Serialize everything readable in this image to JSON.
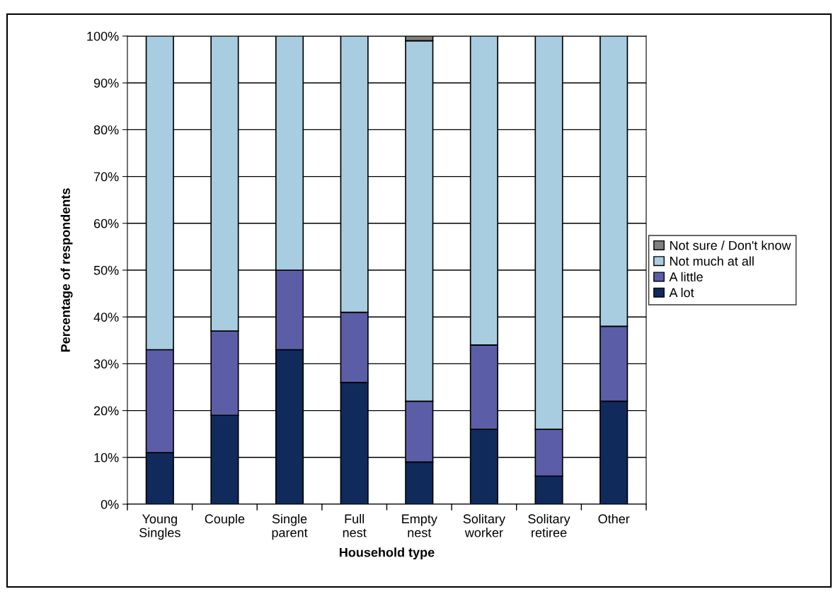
{
  "chart_data": {
    "type": "bar",
    "stacked": true,
    "xlabel": "Household type",
    "ylabel": "Percentage of respondents",
    "categories": [
      "Young\nSingles",
      "Couple",
      "Single\nparent",
      "Full\nnest",
      "Empty\nnest",
      "Solitary\nworker",
      "Solitary\nretiree",
      "Other"
    ],
    "series": [
      {
        "name": "A lot",
        "color": "#112a5c",
        "values": [
          11,
          19,
          33,
          26,
          9,
          16,
          6,
          22
        ]
      },
      {
        "name": "A little",
        "color": "#5b5ea6",
        "values": [
          22,
          18,
          17,
          15,
          13,
          18,
          10,
          16
        ]
      },
      {
        "name": "Not much at all",
        "color": "#a8cde0",
        "values": [
          67,
          63,
          50,
          59,
          77,
          66,
          84,
          62
        ]
      },
      {
        "name": "Not sure / Don't know",
        "color": "#808080",
        "values": [
          0,
          0,
          0,
          0,
          1,
          0,
          0,
          0
        ]
      }
    ],
    "ylim": [
      0,
      100
    ],
    "yticks": [
      {
        "value": 0,
        "label": "0%"
      },
      {
        "value": 10,
        "label": "10%"
      },
      {
        "value": 20,
        "label": "20%"
      },
      {
        "value": 30,
        "label": "30%"
      },
      {
        "value": 40,
        "label": "40%"
      },
      {
        "value": 50,
        "label": "50%"
      },
      {
        "value": 60,
        "label": "60%"
      },
      {
        "value": 70,
        "label": "70%"
      },
      {
        "value": 80,
        "label": "80%"
      },
      {
        "value": 90,
        "label": "90%"
      },
      {
        "value": 100,
        "label": "100%"
      }
    ],
    "grid": "y",
    "legend": "right"
  }
}
